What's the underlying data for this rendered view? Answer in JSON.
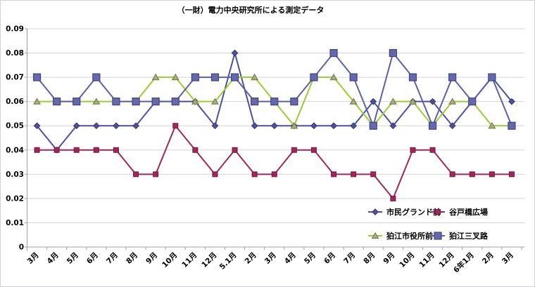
{
  "chart_data": {
    "type": "line",
    "title": "（一財）電力中央研究所による測定データ",
    "categories": [
      "3月",
      "4月",
      "5月",
      "6月",
      "7月",
      "8月",
      "9月",
      "10月",
      "11月",
      "12月",
      "5.1月",
      "2月",
      "3月",
      "4月",
      "5月",
      "6月",
      "7月",
      "8月",
      "9月",
      "10月",
      "11月",
      "12月",
      "6年1月",
      "2月",
      "3月"
    ],
    "series": [
      {
        "name": "市民グランド前",
        "marker": "diamond",
        "line_color": "#4c519d",
        "marker_fill": "#4c519d",
        "marker_stroke": "#33376e",
        "values": [
          0.05,
          0.04,
          0.05,
          0.05,
          0.05,
          0.05,
          0.06,
          0.06,
          0.06,
          0.05,
          0.08,
          0.05,
          0.05,
          0.05,
          0.05,
          0.05,
          0.05,
          0.06,
          0.05,
          0.06,
          0.06,
          0.05,
          0.06,
          0.07,
          0.06
        ]
      },
      {
        "name": "谷戸橋広場",
        "marker": "square",
        "line_color": "#a2265a",
        "marker_fill": "#a2265a",
        "marker_stroke": "#751940",
        "values": [
          0.04,
          0.04,
          0.04,
          0.04,
          0.04,
          0.03,
          0.03,
          0.05,
          0.04,
          0.03,
          0.04,
          0.03,
          0.03,
          0.04,
          0.04,
          0.03,
          0.03,
          0.03,
          0.02,
          0.04,
          0.04,
          0.03,
          0.03,
          0.03,
          0.03
        ]
      },
      {
        "name": "狛江市役所前",
        "marker": "triangle",
        "line_color": "#9acc34",
        "marker_fill": "#a9ab85",
        "marker_stroke": "#6e763e",
        "values": [
          0.06,
          0.06,
          0.06,
          0.06,
          0.06,
          0.06,
          0.07,
          0.07,
          0.06,
          0.06,
          0.07,
          0.07,
          0.06,
          0.05,
          0.07,
          0.07,
          0.06,
          0.05,
          0.06,
          0.06,
          0.05,
          0.06,
          0.06,
          0.05,
          0.05
        ]
      },
      {
        "name": "狛江三叉路",
        "marker": "square-large",
        "line_color": "#5c60a5",
        "marker_fill": "#6568ac",
        "marker_stroke": "#3f4380",
        "values": [
          0.07,
          0.06,
          0.06,
          0.07,
          0.06,
          0.06,
          0.06,
          0.06,
          0.07,
          0.07,
          0.07,
          0.06,
          0.06,
          0.06,
          0.07,
          0.08,
          0.07,
          0.05,
          0.08,
          0.07,
          0.05,
          0.07,
          0.06,
          0.07,
          0.05
        ]
      }
    ],
    "ylim": [
      0,
      0.09
    ],
    "ytick_step": 0.01,
    "ytick_labels": [
      "0",
      "0.01",
      "0.02",
      "0.03",
      "0.04",
      "0.05",
      "0.06",
      "0.07",
      "0.08",
      "0.09"
    ],
    "grid": true,
    "legend_position": "inside-bottom-right",
    "grid_color": "#d5d5d5",
    "axis_color": "#99a0ac"
  }
}
